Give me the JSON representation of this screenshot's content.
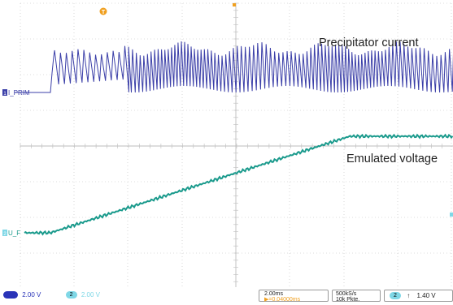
{
  "annotations": {
    "current_label": "Precipitator current",
    "voltage_label": "Emulated voltage"
  },
  "channels": {
    "ch1_marker": "1",
    "ch1_name": "I_PRIM",
    "ch2_marker": "2",
    "ch2_name": "U_F"
  },
  "trigger_marker": "T",
  "status": {
    "ch1_scale": "2.00 V",
    "ch2_num": "2",
    "ch2_scale": "2.00 V",
    "timebase": "2.00ms",
    "trigger_offset": "▶=0.04000ms",
    "sample_rate": "500kS/s",
    "record_length": "10k Pkte.",
    "trigger_channel": "2",
    "trigger_slope": "↑",
    "trigger_level": "1.40 V"
  },
  "colors": {
    "ch1": "#3b3fa8",
    "ch2": "#1a9a8c",
    "trigger": "#f0a020",
    "grid": "#bdbdbd",
    "background": "#ffffff"
  }
}
